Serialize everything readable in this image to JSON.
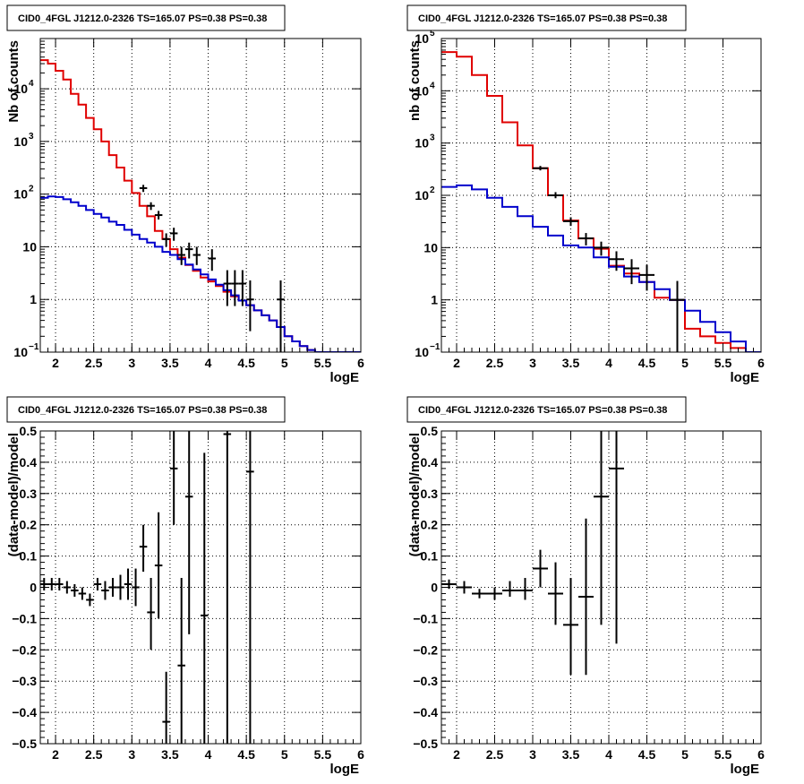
{
  "colors": {
    "data": "#000000",
    "total_model": "#e00000",
    "background_model": "#0000cc",
    "grid": "#000000"
  },
  "chart_data": [
    {
      "type": "line",
      "title": "CID0_4FGL J1212.0-2326 TS=165.07 PS=0.38 PS=0.38",
      "xlabel": "logE",
      "ylabel": "Nb of counts",
      "xlim": [
        1.8,
        6
      ],
      "ylim": [
        0.1,
        90000
      ],
      "yscale": "log",
      "grid": true,
      "xticks": [
        "2",
        "2.5",
        "3",
        "3.5",
        "4",
        "4.5",
        "5",
        "5.5",
        "6"
      ],
      "yticks": [
        {
          "value": 0.1,
          "label": "10",
          "sup": "−1"
        },
        {
          "value": 1,
          "label": "1",
          "sup": ""
        },
        {
          "value": 10,
          "label": "10",
          "sup": ""
        },
        {
          "value": 100,
          "label": "10",
          "sup": "2"
        },
        {
          "value": 1000,
          "label": "10",
          "sup": "3"
        },
        {
          "value": 10000,
          "label": "10",
          "sup": "4"
        }
      ],
      "series": [
        {
          "style": "step",
          "color": "#e00000",
          "edges": [
            1.8,
            1.9,
            2.0,
            2.1,
            2.2,
            2.3,
            2.4,
            2.5,
            2.6,
            2.7,
            2.8,
            2.9,
            3.0,
            3.1,
            3.2,
            3.3,
            3.4,
            3.5,
            3.6,
            3.7,
            3.8,
            3.9,
            4.0,
            4.1,
            4.2,
            4.3,
            4.4,
            4.5,
            4.6,
            4.7,
            4.8,
            4.9,
            5.0,
            5.1,
            5.2,
            5.3,
            5.4,
            5.5,
            5.6,
            5.7,
            5.8,
            5.9,
            6.0
          ],
          "values": [
            35000,
            30000,
            22000,
            15000,
            8000,
            5000,
            2800,
            1700,
            1000,
            550,
            320,
            180,
            105,
            60,
            38,
            20,
            14,
            9,
            6.2,
            4.5,
            3.5,
            2.6,
            2.2,
            1.8,
            1.4,
            1.15,
            0.95,
            0.78,
            0.62,
            0.5,
            0.4,
            0.3,
            0.2,
            0.16,
            0.13,
            0.11,
            0.1,
            0.1,
            0.1,
            0.1,
            0.1,
            0.1
          ]
        },
        {
          "style": "step",
          "color": "#0000cc",
          "edges": [
            1.8,
            1.9,
            2.0,
            2.1,
            2.2,
            2.3,
            2.4,
            2.5,
            2.6,
            2.7,
            2.8,
            2.9,
            3.0,
            3.1,
            3.2,
            3.3,
            3.4,
            3.5,
            3.6,
            3.7,
            3.8,
            3.9,
            4.0,
            4.1,
            4.2,
            4.3,
            4.4,
            4.5,
            4.6,
            4.7,
            4.8,
            4.9,
            5.0,
            5.1,
            5.2,
            5.3,
            5.4,
            5.5,
            5.6,
            5.7,
            5.8,
            5.9,
            6.0
          ],
          "values": [
            85,
            90,
            88,
            80,
            70,
            60,
            50,
            42,
            36,
            30,
            26,
            21,
            17,
            14,
            12,
            10,
            8,
            7,
            5.8,
            4.6,
            3.7,
            3.0,
            2.4,
            1.9,
            1.5,
            1.2,
            0.95,
            0.78,
            0.62,
            0.5,
            0.4,
            0.3,
            0.2,
            0.16,
            0.13,
            0.11,
            0.1,
            0.1,
            0.1,
            0.1,
            0.1,
            0.1
          ]
        },
        {
          "style": "errorbars",
          "color": "#000000",
          "points": [
            {
              "x": 3.15,
              "y": 130,
              "xerr": 0.05,
              "ylo": 110,
              "yhi": 150
            },
            {
              "x": 3.25,
              "y": 60,
              "xerr": 0.05,
              "ylo": 50,
              "yhi": 70
            },
            {
              "x": 3.35,
              "y": 40,
              "xerr": 0.05,
              "ylo": 33,
              "yhi": 48
            },
            {
              "x": 3.45,
              "y": 14,
              "xerr": 0.05,
              "ylo": 10,
              "yhi": 18
            },
            {
              "x": 3.55,
              "y": 18,
              "xerr": 0.05,
              "ylo": 13,
              "yhi": 23
            },
            {
              "x": 3.65,
              "y": 7,
              "xerr": 0.05,
              "ylo": 4.5,
              "yhi": 10
            },
            {
              "x": 3.75,
              "y": 9,
              "xerr": 0.05,
              "ylo": 6,
              "yhi": 12
            },
            {
              "x": 3.85,
              "y": 7,
              "xerr": 0.05,
              "ylo": 4.5,
              "yhi": 10
            },
            {
              "x": 4.05,
              "y": 6,
              "xerr": 0.05,
              "ylo": 3.5,
              "yhi": 9
            },
            {
              "x": 4.25,
              "y": 2,
              "xerr": 0.05,
              "ylo": 0.75,
              "yhi": 3.6
            },
            {
              "x": 4.35,
              "y": 2,
              "xerr": 0.05,
              "ylo": 0.75,
              "yhi": 3.6
            },
            {
              "x": 4.45,
              "y": 2,
              "xerr": 0.05,
              "ylo": 0.75,
              "yhi": 3.6
            },
            {
              "x": 4.55,
              "y": 1,
              "xerr": 0.05,
              "ylo": 0.25,
              "yhi": 2.3
            },
            {
              "x": 4.95,
              "y": 1,
              "xerr": 0.05,
              "ylo": 0.1,
              "yhi": 2.3
            }
          ]
        }
      ]
    },
    {
      "type": "line",
      "title": "CID0_4FGL J1212.0-2326 TS=165.07 PS=0.38 PS=0.38",
      "xlabel": "logE",
      "ylabel": "nb of counts",
      "xlim": [
        1.8,
        6
      ],
      "ylim": [
        0.1,
        100000
      ],
      "yscale": "log",
      "grid": true,
      "xticks": [
        "2",
        "2.5",
        "3",
        "3.5",
        "4",
        "4.5",
        "5",
        "5.5",
        "6"
      ],
      "yticks": [
        {
          "value": 0.1,
          "label": "10",
          "sup": "−1"
        },
        {
          "value": 1,
          "label": "1",
          "sup": ""
        },
        {
          "value": 10,
          "label": "10",
          "sup": ""
        },
        {
          "value": 100,
          "label": "10",
          "sup": "2"
        },
        {
          "value": 1000,
          "label": "10",
          "sup": "3"
        },
        {
          "value": 10000,
          "label": "10",
          "sup": "4"
        },
        {
          "value": 100000,
          "label": "10",
          "sup": "5"
        }
      ],
      "series": [
        {
          "style": "step",
          "color": "#e00000",
          "edges": [
            1.8,
            2.0,
            2.2,
            2.4,
            2.6,
            2.8,
            3.0,
            3.2,
            3.4,
            3.6,
            3.8,
            4.0,
            4.2,
            4.4,
            4.6,
            4.8,
            5.0,
            5.2,
            5.4,
            5.6,
            5.8,
            6.0
          ],
          "values": [
            55000,
            45000,
            20000,
            8000,
            2500,
            900,
            330,
            100,
            33,
            15,
            9.5,
            4.5,
            3.2,
            2.2,
            1.1,
            1.0,
            0.28,
            0.2,
            0.15,
            0.12,
            0.1
          ]
        },
        {
          "style": "step",
          "color": "#0000cc",
          "edges": [
            1.8,
            2.0,
            2.2,
            2.4,
            2.6,
            2.8,
            3.0,
            3.2,
            3.4,
            3.6,
            3.8,
            4.0,
            4.2,
            4.4,
            4.6,
            4.8,
            5.0,
            5.2,
            5.4,
            5.6,
            5.8,
            6.0
          ],
          "values": [
            145,
            155,
            130,
            90,
            60,
            40,
            25,
            17,
            11,
            10,
            6.5,
            4.3,
            2.8,
            2.2,
            1.6,
            1.0,
            0.62,
            0.38,
            0.24,
            0.16,
            0.1
          ]
        },
        {
          "style": "errorbars",
          "color": "#000000",
          "points": [
            {
              "x": 3.1,
              "y": 330,
              "xerr": 0.1,
              "ylo": 300,
              "yhi": 365
            },
            {
              "x": 3.3,
              "y": 100,
              "xerr": 0.1,
              "ylo": 88,
              "yhi": 115
            },
            {
              "x": 3.5,
              "y": 32,
              "xerr": 0.1,
              "ylo": 26,
              "yhi": 38
            },
            {
              "x": 3.7,
              "y": 15,
              "xerr": 0.1,
              "ylo": 11,
              "yhi": 19
            },
            {
              "x": 3.9,
              "y": 10,
              "xerr": 0.1,
              "ylo": 7,
              "yhi": 13
            },
            {
              "x": 4.1,
              "y": 6,
              "xerr": 0.1,
              "ylo": 3.6,
              "yhi": 8.5
            },
            {
              "x": 4.3,
              "y": 4,
              "xerr": 0.1,
              "ylo": 2,
              "yhi": 6
            },
            {
              "x": 4.5,
              "y": 3,
              "xerr": 0.1,
              "ylo": 1.5,
              "yhi": 4.7
            },
            {
              "x": 4.9,
              "y": 1,
              "xerr": 0.1,
              "ylo": 0.1,
              "yhi": 2.3
            }
          ]
        }
      ]
    },
    {
      "type": "scatter",
      "title": "CID0_4FGL J1212.0-2326 TS=165.07 PS=0.38 PS=0.38",
      "xlabel": "logE",
      "ylabel": "(data-model)/model",
      "xlim": [
        1.8,
        6
      ],
      "ylim": [
        -0.5,
        0.5
      ],
      "yscale": "linear",
      "grid": true,
      "xticks": [
        "2",
        "2.5",
        "3",
        "3.5",
        "4",
        "4.5",
        "5",
        "5.5",
        "6"
      ],
      "yticks": [
        {
          "value": -0.5,
          "label": "−0.5",
          "sup": ""
        },
        {
          "value": -0.4,
          "label": "−0.4",
          "sup": ""
        },
        {
          "value": -0.3,
          "label": "−0.3",
          "sup": ""
        },
        {
          "value": -0.2,
          "label": "−0.2",
          "sup": ""
        },
        {
          "value": -0.1,
          "label": "−0.1",
          "sup": ""
        },
        {
          "value": 0,
          "label": "0",
          "sup": ""
        },
        {
          "value": 0.1,
          "label": "0.1",
          "sup": ""
        },
        {
          "value": 0.2,
          "label": "0.2",
          "sup": ""
        },
        {
          "value": 0.3,
          "label": "0.3",
          "sup": ""
        },
        {
          "value": 0.4,
          "label": "0.4",
          "sup": ""
        },
        {
          "value": 0.5,
          "label": "0.5",
          "sup": ""
        }
      ],
      "series": [
        {
          "style": "errorbars",
          "color": "#000000",
          "points": [
            {
              "x": 1.85,
              "y": 0.01,
              "xerr": 0.05,
              "ylo": -0.01,
              "yhi": 0.03
            },
            {
              "x": 1.95,
              "y": 0.01,
              "xerr": 0.05,
              "ylo": -0.01,
              "yhi": 0.03
            },
            {
              "x": 2.05,
              "y": 0.01,
              "xerr": 0.05,
              "ylo": -0.01,
              "yhi": 0.03
            },
            {
              "x": 2.15,
              "y": 0.0,
              "xerr": 0.05,
              "ylo": -0.02,
              "yhi": 0.02
            },
            {
              "x": 2.25,
              "y": -0.01,
              "xerr": 0.05,
              "ylo": -0.03,
              "yhi": 0.01
            },
            {
              "x": 2.35,
              "y": -0.02,
              "xerr": 0.05,
              "ylo": -0.04,
              "yhi": 0.0
            },
            {
              "x": 2.45,
              "y": -0.04,
              "xerr": 0.05,
              "ylo": -0.06,
              "yhi": -0.02
            },
            {
              "x": 2.55,
              "y": 0.01,
              "xerr": 0.05,
              "ylo": -0.01,
              "yhi": 0.03
            },
            {
              "x": 2.65,
              "y": -0.01,
              "xerr": 0.05,
              "ylo": -0.04,
              "yhi": 0.02
            },
            {
              "x": 2.75,
              "y": 0.0,
              "xerr": 0.05,
              "ylo": -0.03,
              "yhi": 0.03
            },
            {
              "x": 2.85,
              "y": 0.0,
              "xerr": 0.05,
              "ylo": -0.04,
              "yhi": 0.04
            },
            {
              "x": 2.95,
              "y": 0.01,
              "xerr": 0.05,
              "ylo": -0.04,
              "yhi": 0.06
            },
            {
              "x": 3.05,
              "y": 0.0,
              "xerr": 0.05,
              "ylo": -0.06,
              "yhi": 0.06
            },
            {
              "x": 3.15,
              "y": 0.13,
              "xerr": 0.05,
              "ylo": 0.05,
              "yhi": 0.2
            },
            {
              "x": 3.25,
              "y": -0.08,
              "xerr": 0.05,
              "ylo": -0.2,
              "yhi": 0.03
            },
            {
              "x": 3.35,
              "y": 0.07,
              "xerr": 0.05,
              "ylo": -0.1,
              "yhi": 0.24
            },
            {
              "x": 3.45,
              "y": -0.43,
              "xerr": 0.05,
              "ylo": -0.5,
              "yhi": -0.27
            },
            {
              "x": 3.55,
              "y": 0.38,
              "xerr": 0.05,
              "ylo": 0.2,
              "yhi": 0.5
            },
            {
              "x": 3.65,
              "y": -0.25,
              "xerr": 0.05,
              "ylo": -0.5,
              "yhi": 0.03
            },
            {
              "x": 3.75,
              "y": 0.29,
              "xerr": 0.05,
              "ylo": -0.15,
              "yhi": 0.5
            },
            {
              "x": 3.95,
              "y": -0.09,
              "xerr": 0.05,
              "ylo": -0.5,
              "yhi": 0.43
            },
            {
              "x": 4.25,
              "y": 0.49,
              "xerr": 0.05,
              "ylo": -0.5,
              "yhi": 0.5
            },
            {
              "x": 4.55,
              "y": 0.37,
              "xerr": 0.05,
              "ylo": -0.5,
              "yhi": 0.5
            }
          ]
        }
      ]
    },
    {
      "type": "scatter",
      "title": "CID0_4FGL J1212.0-2326 TS=165.07 PS=0.38 PS=0.38",
      "xlabel": "logE",
      "ylabel": "(data-model)/model",
      "xlim": [
        1.8,
        6
      ],
      "ylim": [
        -0.5,
        0.5
      ],
      "yscale": "linear",
      "grid": true,
      "xticks": [
        "2",
        "2.5",
        "3",
        "3.5",
        "4",
        "4.5",
        "5",
        "5.5",
        "6"
      ],
      "yticks": [
        {
          "value": -0.5,
          "label": "−0.5",
          "sup": ""
        },
        {
          "value": -0.4,
          "label": "−0.4",
          "sup": ""
        },
        {
          "value": -0.3,
          "label": "−0.3",
          "sup": ""
        },
        {
          "value": -0.2,
          "label": "−0.2",
          "sup": ""
        },
        {
          "value": -0.1,
          "label": "−0.1",
          "sup": ""
        },
        {
          "value": 0,
          "label": "0",
          "sup": ""
        },
        {
          "value": 0.1,
          "label": "0.1",
          "sup": ""
        },
        {
          "value": 0.2,
          "label": "0.2",
          "sup": ""
        },
        {
          "value": 0.3,
          "label": "0.3",
          "sup": ""
        },
        {
          "value": 0.4,
          "label": "0.4",
          "sup": ""
        },
        {
          "value": 0.5,
          "label": "0.5",
          "sup": ""
        }
      ],
      "series": [
        {
          "style": "errorbars",
          "color": "#000000",
          "points": [
            {
              "x": 1.9,
              "y": 0.01,
              "xerr": 0.1,
              "ylo": -0.005,
              "yhi": 0.025
            },
            {
              "x": 2.1,
              "y": 0.0,
              "xerr": 0.1,
              "ylo": -0.02,
              "yhi": 0.02
            },
            {
              "x": 2.3,
              "y": -0.02,
              "xerr": 0.1,
              "ylo": -0.035,
              "yhi": -0.005
            },
            {
              "x": 2.5,
              "y": -0.02,
              "xerr": 0.1,
              "ylo": -0.04,
              "yhi": 0.0
            },
            {
              "x": 2.7,
              "y": -0.01,
              "xerr": 0.1,
              "ylo": -0.03,
              "yhi": 0.02
            },
            {
              "x": 2.9,
              "y": -0.01,
              "xerr": 0.1,
              "ylo": -0.04,
              "yhi": 0.03
            },
            {
              "x": 3.1,
              "y": 0.06,
              "xerr": 0.1,
              "ylo": 0.0,
              "yhi": 0.12
            },
            {
              "x": 3.3,
              "y": -0.02,
              "xerr": 0.1,
              "ylo": -0.12,
              "yhi": 0.08
            },
            {
              "x": 3.5,
              "y": -0.12,
              "xerr": 0.1,
              "ylo": -0.28,
              "yhi": 0.03
            },
            {
              "x": 3.7,
              "y": -0.03,
              "xerr": 0.1,
              "ylo": -0.28,
              "yhi": 0.22
            },
            {
              "x": 3.9,
              "y": 0.29,
              "xerr": 0.1,
              "ylo": -0.12,
              "yhi": 0.5
            },
            {
              "x": 4.1,
              "y": 0.38,
              "xerr": 0.1,
              "ylo": -0.18,
              "yhi": 0.5
            }
          ]
        }
      ]
    }
  ]
}
